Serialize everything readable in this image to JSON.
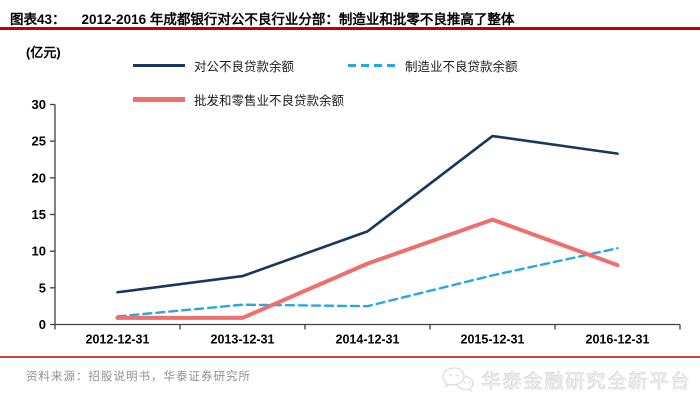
{
  "header": {
    "fig_label": "图表43：",
    "title": "2012-2016 年成都银行对公不良行业分部：制造业和批零不良推高了整体"
  },
  "chart_data": {
    "type": "line",
    "title": "2012-2016 年成都银行对公不良行业分部",
    "unit_label": "(亿元)",
    "xlabel": "",
    "ylabel": "亿元",
    "ylim": [
      0,
      30
    ],
    "ytick_step": 5,
    "yticks": [
      0,
      5,
      10,
      15,
      20,
      25,
      30
    ],
    "grid": false,
    "legend_position": "top",
    "categories": [
      "2012-12-31",
      "2013-12-31",
      "2014-12-31",
      "2015-12-31",
      "2016-12-31"
    ],
    "series": [
      {
        "name": "对公不良贷款余额",
        "values": [
          4.4,
          6.6,
          12.7,
          25.7,
          23.3
        ],
        "color": "#17375E",
        "style": "solid",
        "width": 2.6
      },
      {
        "name": "制造业不良贷款余额",
        "values": [
          1.1,
          2.7,
          2.5,
          6.7,
          10.4
        ],
        "color": "#29A8E0",
        "style": "dashed",
        "width": 2.4
      },
      {
        "name": "批发和零售业不良贷款余额",
        "values": [
          0.9,
          0.9,
          8.3,
          14.3,
          8.1
        ],
        "color": "#F06E6E",
        "style": "solid",
        "width": 4
      }
    ]
  },
  "footer": {
    "source": "资料来源：招股说明书，华泰证券研究所",
    "watermark": "华泰金融研究全新平台"
  },
  "colors": {
    "rule_top": "#C00000",
    "rule_bottom": "#C8473B",
    "axis": "#404040",
    "tick_label": "#000000"
  }
}
